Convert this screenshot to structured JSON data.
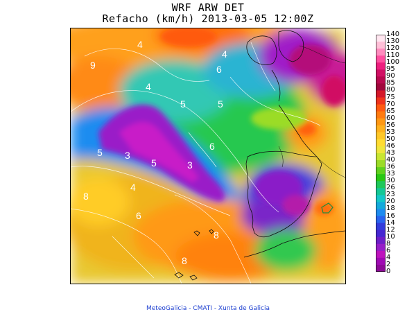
{
  "title": "WRF ARW DET",
  "subtitle": "Refacho (km/h) 2013-03-05 12:00Z",
  "footer": "MeteoGalicia - CMATI - Xunta de Galicia",
  "colorbar": {
    "ticks": [
      "140",
      "130",
      "120",
      "110",
      "100",
      "95",
      "90",
      "85",
      "80",
      "75",
      "70",
      "65",
      "60",
      "56",
      "53",
      "50",
      "46",
      "43",
      "40",
      "36",
      "33",
      "30",
      "26",
      "23",
      "20",
      "18",
      "16",
      "14",
      "12",
      "10",
      "8",
      "6",
      "4",
      "2",
      "0"
    ],
    "colors": [
      "#ffe6f0",
      "#ffc0d8",
      "#ff8cbf",
      "#ff4fa0",
      "#ee1f7f",
      "#d10f64",
      "#b8084e",
      "#a0063c",
      "#d4182a",
      "#f0341c",
      "#ff5a10",
      "#ff7b10",
      "#ff9914",
      "#ffb21e",
      "#ffc828",
      "#ffdc32",
      "#f0e63c",
      "#c8e632",
      "#9bdc28",
      "#5fd21e",
      "#28c814",
      "#1ec85a",
      "#14c896",
      "#14c8c8",
      "#14aadc",
      "#1e8cf0",
      "#2864f0",
      "#323cdc",
      "#4628d2",
      "#6e1ec8",
      "#961ec8",
      "#be14be",
      "#a00ab4",
      "#8c0a96",
      "#640064"
    ]
  },
  "map": {
    "contour_labels": [
      "4",
      "9",
      "4",
      "4",
      "5",
      "5",
      "6",
      "5",
      "3",
      "3",
      "4",
      "5",
      "8",
      "8",
      "6",
      "6",
      "8"
    ]
  }
}
